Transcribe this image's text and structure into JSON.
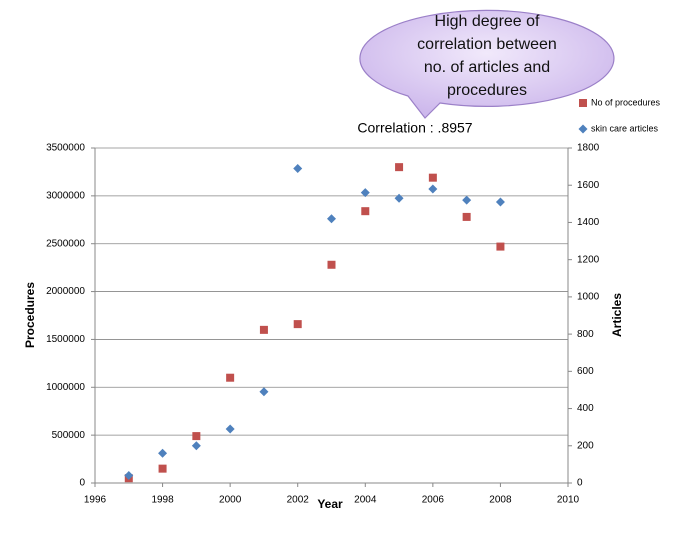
{
  "chart_data": {
    "type": "scatter",
    "callout": [
      "High degree of",
      "correlation between",
      "no. of articles and",
      "procedures"
    ],
    "annotation": "Correlation :  .8957",
    "x_label": "Year",
    "y_label": "Procedures",
    "y2_label": "Articles",
    "xlim": [
      1996,
      2010
    ],
    "xticks": [
      1996,
      1998,
      2000,
      2002,
      2004,
      2006,
      2008,
      2010
    ],
    "ylim": [
      0,
      3500000
    ],
    "yticks": [
      0,
      500000,
      1000000,
      1500000,
      2000000,
      2500000,
      3000000,
      3500000
    ],
    "y2lim": [
      0,
      1800
    ],
    "y2ticks": [
      0,
      200,
      400,
      600,
      800,
      1000,
      1200,
      1400,
      1600,
      1800
    ],
    "grid": true,
    "x": [
      1997,
      1998,
      1999,
      2000,
      2001,
      2002,
      2003,
      2004,
      2005,
      2006,
      2007,
      2008
    ],
    "series": [
      {
        "name": "No of procedures",
        "color": "#c0504d",
        "marker": "square",
        "values": [
          50000,
          150000,
          490000,
          1100000,
          1600000,
          1660000,
          2280000,
          2840000,
          3300000,
          3190000,
          2780000,
          2470000
        ]
      },
      {
        "name": "skin care articles",
        "color": "#4f81bd",
        "marker": "diamond",
        "axis": "y2",
        "values": [
          40,
          160,
          200,
          290,
          490,
          1690,
          1420,
          1560,
          1530,
          1580,
          1520,
          1510
        ]
      }
    ]
  }
}
